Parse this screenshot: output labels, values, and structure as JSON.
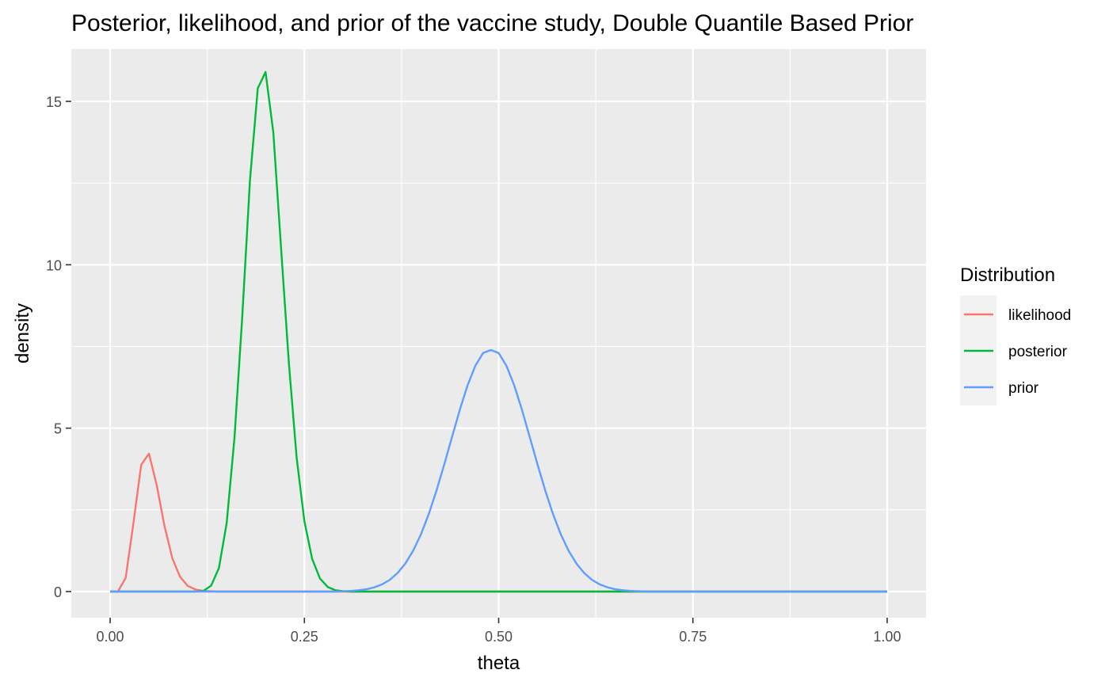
{
  "chart_data": {
    "type": "line",
    "title": "Posterior, likelihood, and prior of the vaccine study, Double Quantile Based Prior",
    "xlabel": "theta",
    "ylabel": "density",
    "xlim": [
      -0.05,
      1.05
    ],
    "ylim": [
      -0.8,
      16.6
    ],
    "x_ticks": [
      0,
      0.25,
      0.5,
      0.75,
      1
    ],
    "x_tick_labels": [
      "0.00",
      "0.25",
      "0.50",
      "0.75",
      "1.00"
    ],
    "y_ticks": [
      0,
      5,
      10,
      15
    ],
    "y_tick_labels": [
      "0",
      "5",
      "10",
      "15"
    ],
    "grid": true,
    "legend": {
      "title": "Distribution",
      "position": "right"
    },
    "x": [
      0,
      0.01,
      0.02,
      0.03,
      0.04,
      0.05,
      0.06,
      0.07,
      0.08,
      0.09,
      0.1,
      0.11,
      0.12,
      0.13,
      0.14,
      0.15,
      0.16,
      0.17,
      0.18,
      0.19,
      0.2,
      0.21,
      0.22,
      0.23,
      0.24,
      0.25,
      0.26,
      0.27,
      0.28,
      0.29,
      0.3,
      0.31,
      0.32,
      0.33,
      0.34,
      0.35,
      0.36,
      0.37,
      0.38,
      0.39,
      0.4,
      0.41,
      0.42,
      0.43,
      0.44,
      0.45,
      0.46,
      0.47,
      0.48,
      0.49,
      0.5,
      0.51,
      0.52,
      0.53,
      0.54,
      0.55,
      0.56,
      0.57,
      0.58,
      0.59,
      0.6,
      0.61,
      0.62,
      0.63,
      0.64,
      0.65,
      0.66,
      0.67,
      0.68,
      0.69,
      0.7,
      0.71,
      0.72,
      0.73,
      0.74,
      0.75,
      0.76,
      0.77,
      0.78,
      0.79,
      0.8,
      0.81,
      0.82,
      0.83,
      0.84,
      0.85,
      0.86,
      0.87,
      0.88,
      0.89,
      0.9,
      0.91,
      0.92,
      0.93,
      0.94,
      0.95,
      0.96,
      0.97,
      0.98,
      0.99,
      1.0
    ],
    "series": [
      {
        "name": "likelihood",
        "color": "#F8766D",
        "values": [
          0,
          0,
          0.42,
          2.1,
          3.88,
          4.22,
          3.25,
          2.0,
          1.02,
          0.45,
          0.17,
          0.06,
          0.02,
          0.01,
          0,
          0,
          0,
          0,
          0,
          0,
          0,
          0,
          0,
          0,
          0,
          0,
          0,
          0,
          0,
          0,
          0,
          0,
          0,
          0,
          0,
          0,
          0,
          0,
          0,
          0,
          0,
          0,
          0,
          0,
          0,
          0,
          0,
          0,
          0,
          0,
          0,
          0,
          0,
          0,
          0,
          0,
          0,
          0,
          0,
          0,
          0,
          0,
          0,
          0,
          0,
          0,
          0,
          0,
          0,
          0,
          0,
          0,
          0,
          0,
          0,
          0,
          0,
          0,
          0,
          0,
          0,
          0,
          0,
          0,
          0,
          0,
          0,
          0,
          0,
          0,
          0,
          0,
          0,
          0,
          0,
          0,
          0,
          0,
          0,
          0,
          0
        ]
      },
      {
        "name": "posterior",
        "color": "#00BA38",
        "values": [
          0,
          0,
          0,
          0,
          0,
          0,
          0,
          0,
          0,
          0,
          0,
          0,
          0.02,
          0.18,
          0.72,
          2.1,
          4.7,
          8.4,
          12.6,
          15.4,
          15.9,
          14.05,
          10.5,
          7.0,
          4.1,
          2.15,
          1.0,
          0.4,
          0.14,
          0.04,
          0.01,
          0,
          0,
          0,
          0,
          0,
          0,
          0,
          0,
          0,
          0,
          0,
          0,
          0,
          0,
          0,
          0,
          0,
          0,
          0,
          0,
          0,
          0,
          0,
          0,
          0,
          0,
          0,
          0,
          0,
          0,
          0,
          0,
          0,
          0,
          0,
          0,
          0,
          0,
          0,
          0,
          0,
          0,
          0,
          0,
          0,
          0,
          0,
          0,
          0,
          0,
          0,
          0,
          0,
          0,
          0,
          0,
          0,
          0,
          0,
          0,
          0,
          0,
          0,
          0,
          0,
          0,
          0,
          0,
          0,
          0
        ]
      },
      {
        "name": "prior",
        "color": "#619CFF",
        "values": [
          0,
          0,
          0,
          0,
          0,
          0,
          0,
          0,
          0,
          0,
          0,
          0,
          0,
          0,
          0,
          0,
          0,
          0,
          0,
          0,
          0,
          0,
          0,
          0,
          0,
          0,
          0,
          0,
          0,
          0,
          0.01,
          0.02,
          0.04,
          0.07,
          0.13,
          0.22,
          0.36,
          0.57,
          0.86,
          1.25,
          1.75,
          2.37,
          3.09,
          3.89,
          4.73,
          5.56,
          6.31,
          6.91,
          7.3,
          7.39,
          7.3,
          6.91,
          6.31,
          5.56,
          4.73,
          3.89,
          3.09,
          2.37,
          1.75,
          1.25,
          0.86,
          0.57,
          0.36,
          0.22,
          0.13,
          0.07,
          0.04,
          0.02,
          0.01,
          0,
          0,
          0,
          0,
          0,
          0,
          0,
          0,
          0,
          0,
          0,
          0,
          0,
          0,
          0,
          0,
          0,
          0,
          0,
          0,
          0,
          0,
          0,
          0,
          0,
          0,
          0,
          0,
          0,
          0,
          0,
          0
        ]
      }
    ]
  }
}
